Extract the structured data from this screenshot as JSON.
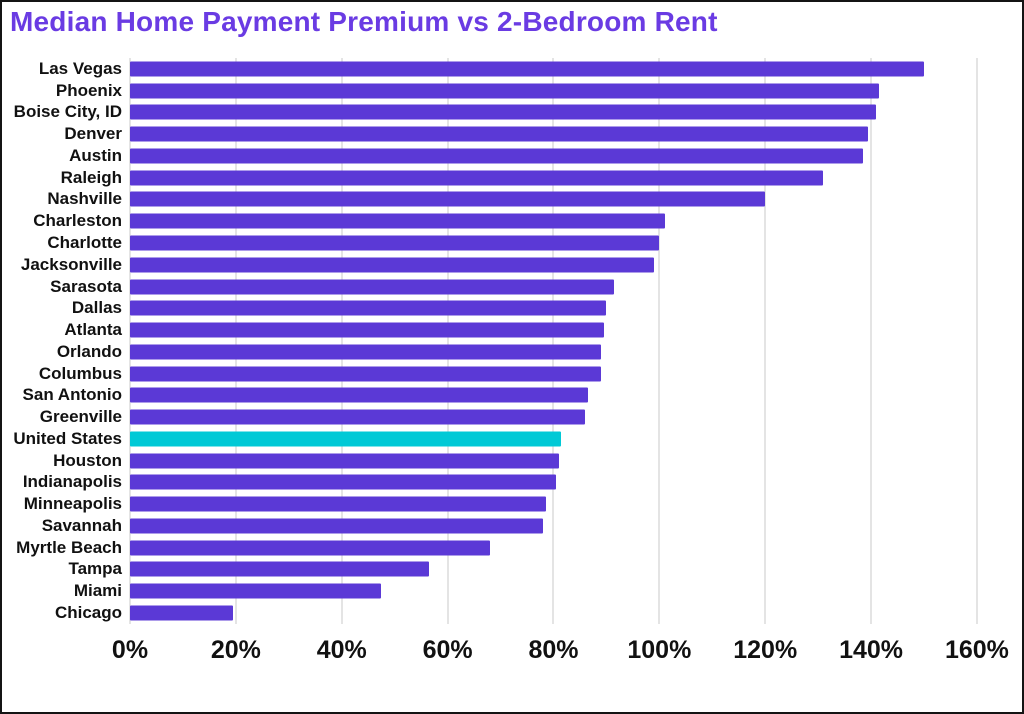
{
  "title": "Median Home Payment Premium vs 2-Bedroom Rent",
  "colors": {
    "title": "#6a3be3",
    "bar": "#5b39d6",
    "highlight_bar": "#00c9d6",
    "gridline": "#e4e4e4",
    "text": "#111111",
    "background": "#ffffff",
    "frame_border": "#141414"
  },
  "chart_data": {
    "type": "bar",
    "orientation": "horizontal",
    "title": "Median Home Payment Premium vs 2-Bedroom Rent",
    "xlabel": "",
    "ylabel": "",
    "grid": true,
    "xlim": [
      0,
      167
    ],
    "x_tick_values": [
      0,
      20,
      40,
      60,
      80,
      100,
      120,
      140,
      160
    ],
    "x_tick_labels": [
      "0%",
      "20%",
      "40%",
      "60%",
      "80%",
      "100%",
      "120%",
      "140%",
      "160%"
    ],
    "value_unit": "percent",
    "highlight_category": "United States",
    "categories": [
      "Las Vegas",
      "Phoenix",
      "Boise City, ID",
      "Denver",
      "Austin",
      "Raleigh",
      "Nashville",
      "Charleston",
      "Charlotte",
      "Jacksonville",
      "Sarasota",
      "Dallas",
      "Atlanta",
      "Orlando",
      "Columbus",
      "San Antonio",
      "Greenville",
      "United States",
      "Houston",
      "Indianapolis",
      "Minneapolis",
      "Savannah",
      "Myrtle Beach",
      "Tampa",
      "Miami",
      "Chicago"
    ],
    "values": [
      150,
      141.5,
      141,
      139.5,
      138.5,
      131,
      120,
      101,
      100,
      99,
      91.5,
      90,
      89.5,
      89,
      89,
      86.5,
      86,
      81.5,
      81,
      80.5,
      78.5,
      78,
      68,
      56.5,
      47.5,
      19.5
    ]
  }
}
